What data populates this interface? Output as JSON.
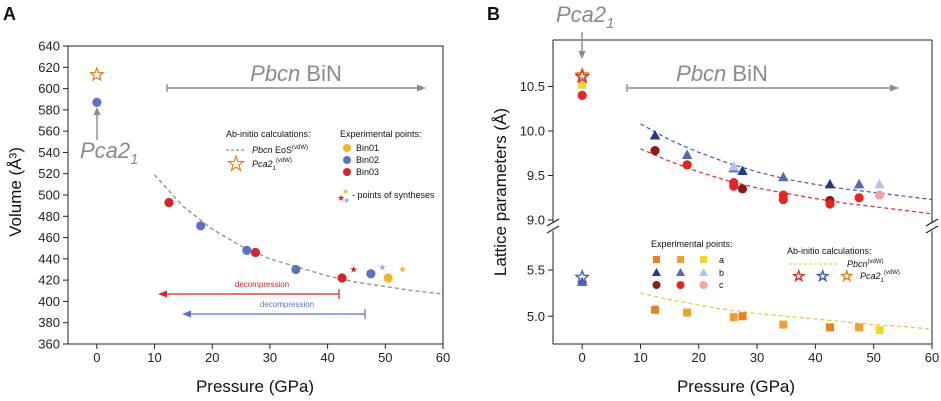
{
  "chart_data": [
    {
      "panel": "A",
      "type": "scatter",
      "xlabel": "Pressure (GPa)",
      "ylabel": "Volume (Å³)",
      "xlim": [
        -5,
        60
      ],
      "ylim": [
        360,
        640
      ],
      "xticks": [
        "0",
        "10",
        "20",
        "30",
        "40",
        "50",
        "60"
      ],
      "yticks": [
        "360",
        "380",
        "400",
        "420",
        "440",
        "460",
        "480",
        "500",
        "520",
        "540",
        "560",
        "580",
        "600",
        "620",
        "640"
      ],
      "series": [
        {
          "name": "Pbcn EoS",
          "kind": "dashed",
          "color": "#8c8c8c",
          "x": [
            10,
            15,
            20,
            25,
            30,
            35,
            40,
            45,
            50,
            55,
            60
          ],
          "y": [
            519,
            489,
            468,
            452,
            440,
            432,
            424,
            418,
            414,
            410,
            407
          ]
        },
        {
          "name": "Pca2₁ (ab-initio)",
          "kind": "star-open",
          "color": "#e8821e",
          "x": [
            0
          ],
          "y": [
            613
          ]
        },
        {
          "name": "Bin01",
          "kind": "circle",
          "color": "#f5b325",
          "x": [
            50.5
          ],
          "y": [
            422
          ]
        },
        {
          "name": "Bin02",
          "kind": "circle",
          "color": "#5e72c2",
          "x": [
            0,
            18,
            26,
            34.5,
            47.5
          ],
          "y": [
            587,
            471,
            448,
            430,
            426
          ]
        },
        {
          "name": "Bin03",
          "kind": "circle",
          "color": "#d8232a",
          "x": [
            12.5,
            27.5,
            42.5
          ],
          "y": [
            493,
            446,
            422
          ]
        },
        {
          "name": "syntheses",
          "kind": "star-small",
          "colors": [
            "#d8232a",
            "#97a8df",
            "#f5b325"
          ],
          "x": [
            44.5,
            49.5,
            53
          ],
          "y": [
            430,
            432,
            430
          ]
        }
      ],
      "annotations": {
        "phase_label_pre": "Pbcn",
        "phase_label_post": " BiN",
        "low_phase_main": "Pca2",
        "low_phase_sub": "1",
        "decompression_red": "decompression",
        "decompression_blue": "decompression",
        "points_of_syntheses": "- points of syntheses"
      },
      "legend": {
        "abinitio_title": "Ab-initio calculations:",
        "eos_name": "Pbcn",
        "eos_text": "EoS",
        "eos_sup": "(vdW)",
        "pca_main": "Pca2",
        "pca_sub": "1",
        "pca_sup": "(vdW)",
        "exp_title": "Experimental points:",
        "exp_items": [
          "Bin01",
          "Bin02",
          "Bin03"
        ]
      }
    },
    {
      "panel": "B",
      "type": "scatter",
      "xlabel": "Pressure (GPa)",
      "ylabel": "Lattice parameters (Å)",
      "xlim": [
        -5,
        60
      ],
      "ylim_upper": [
        9.0,
        11.0
      ],
      "ylim_lower": [
        4.7,
        5.9
      ],
      "xticks": [
        "0",
        "10",
        "20",
        "30",
        "40",
        "50",
        "60"
      ],
      "yticks_upper": [
        "9.0",
        "9.5",
        "10.0",
        "10.5"
      ],
      "yticks_lower": [
        "5.0",
        "5.5"
      ],
      "series": [
        {
          "name": "Pbcn b (ab-initio)",
          "kind": "dashed",
          "color": "#3a55b8",
          "x": [
            10,
            15,
            20,
            25,
            30,
            35,
            40,
            45,
            50,
            55,
            60
          ],
          "y": [
            10.08,
            9.9,
            9.76,
            9.64,
            9.54,
            9.46,
            9.4,
            9.35,
            9.31,
            9.27,
            9.23
          ]
        },
        {
          "name": "Pbcn c (ab-initio)",
          "kind": "dashed",
          "color": "#e02a2a",
          "x": [
            10,
            15,
            20,
            25,
            30,
            35,
            40,
            45,
            50,
            55,
            60
          ],
          "y": [
            9.8,
            9.66,
            9.54,
            9.44,
            9.36,
            9.3,
            9.24,
            9.19,
            9.15,
            9.11,
            9.07
          ]
        },
        {
          "name": "Pbcn a (ab-initio)",
          "kind": "dashed",
          "color": "#f0c23a",
          "x": [
            10,
            15,
            20,
            25,
            30,
            35,
            40,
            45,
            50,
            55,
            60
          ],
          "y": [
            5.25,
            5.18,
            5.12,
            5.07,
            5.03,
            5.0,
            4.97,
            4.94,
            4.91,
            4.89,
            4.86
          ]
        },
        {
          "name": "a Bin03",
          "kind": "square",
          "color": "#e8821e",
          "x": [
            12.5,
            27.5,
            42.5
          ],
          "y": [
            5.07,
            5.0,
            4.88
          ]
        },
        {
          "name": "a Bin02",
          "kind": "square",
          "color": "#f0a030",
          "x": [
            18,
            26,
            34.5,
            47.5
          ],
          "y": [
            5.04,
            4.99,
            4.91,
            4.88
          ]
        },
        {
          "name": "a Bin01",
          "kind": "square",
          "color": "#f2d630",
          "x": [
            0,
            51
          ],
          "y": [
            10.52,
            4.85
          ]
        },
        {
          "name": "b Bin03",
          "kind": "triangle",
          "color": "#23398a",
          "x": [
            12.5,
            27.5,
            42.5
          ],
          "y": [
            9.95,
            9.55,
            9.4
          ]
        },
        {
          "name": "b Bin02",
          "kind": "triangle",
          "color": "#5568b8",
          "x": [
            0,
            18,
            26,
            34.5,
            47.5
          ],
          "y": [
            5.37,
            9.73,
            9.58,
            9.48,
            9.4
          ]
        },
        {
          "name": "b Bin01",
          "kind": "triangle",
          "color": "#b4c2e6",
          "x": [
            26,
            51
          ],
          "y": [
            9.6,
            9.4
          ]
        },
        {
          "name": "c Bin03",
          "kind": "circle",
          "color": "#8c1b1b",
          "x": [
            12.5,
            27.5,
            42.5
          ],
          "y": [
            9.78,
            9.35,
            9.22
          ]
        },
        {
          "name": "c Bin02",
          "kind": "circle",
          "color": "#e52520",
          "x": [
            0,
            18,
            26,
            26,
            34.5,
            34.5,
            42.5,
            47.5
          ],
          "y": [
            10.4,
            9.62,
            9.42,
            9.38,
            9.28,
            9.23,
            9.18,
            9.25
          ]
        },
        {
          "name": "c Bin01",
          "kind": "circle",
          "color": "#f3a3a3",
          "x": [
            51
          ],
          "y": [
            9.28
          ]
        },
        {
          "name": "Pca2₁ ab-initio",
          "kind": "star-open-multi",
          "colors": [
            "#e8821e",
            "#e02a2a"
          ],
          "x": [
            0,
            0
          ],
          "y": [
            10.63,
            10.61
          ]
        },
        {
          "name": "Pca2₁ ab-initio b",
          "kind": "star-open",
          "color": "#3a55b8",
          "x": [
            0
          ],
          "y": [
            5.42
          ]
        }
      ],
      "annotations": {
        "phase_label_pre": "Pbcn",
        "phase_label_post": " BiN",
        "low_phase_main": "Pca2",
        "low_phase_sub": "1"
      },
      "legend": {
        "exp_title": "Experimental points:",
        "rows": [
          "a",
          "b",
          "c"
        ],
        "abinitio_title": "Ab-initio calculations:",
        "pbcn_name": "Pbcn",
        "pbcn_sup": "(vdW)",
        "pca_main": "Pca2",
        "pca_sub": "1",
        "pca_sup": "(vdW)"
      }
    }
  ]
}
